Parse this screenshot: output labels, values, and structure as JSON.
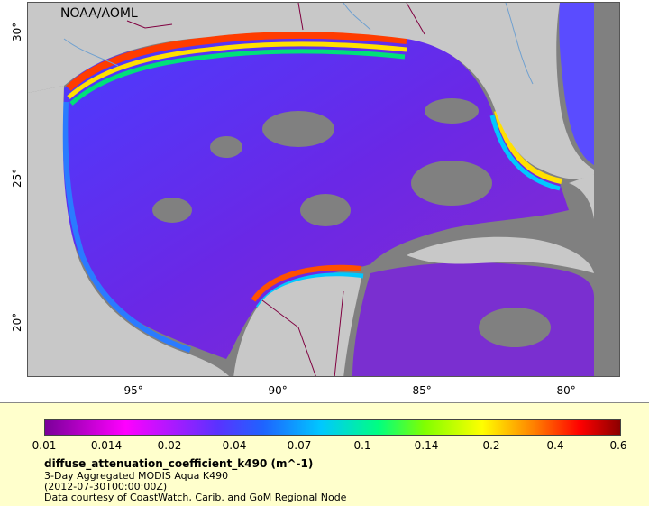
{
  "map": {
    "credit": "NOAA/AOML",
    "y_ticks": [
      "30°",
      "25°",
      "20°"
    ],
    "x_ticks": [
      "-95°",
      "-90°",
      "-85°",
      "-80°"
    ],
    "colors": {
      "land": "#c8c8c8",
      "no_data": "#808080",
      "borders": "#800040",
      "rivers": "#6fa0d0"
    }
  },
  "legend": {
    "scale_labels": [
      "0.01",
      "0.014",
      "0.02",
      "0.04",
      "0.07",
      "0.1",
      "0.14",
      "0.2",
      "0.4",
      "0.6"
    ],
    "variable": "diffuse_attenuation_coefficient_k490 (m^-1)",
    "title": "3-Day Aggregated MODIS Aqua K490",
    "time": "(2012-07-30T00:00:00Z)",
    "credit": "Data courtesy of CoastWatch, Carib. and GoM Regional Node"
  }
}
